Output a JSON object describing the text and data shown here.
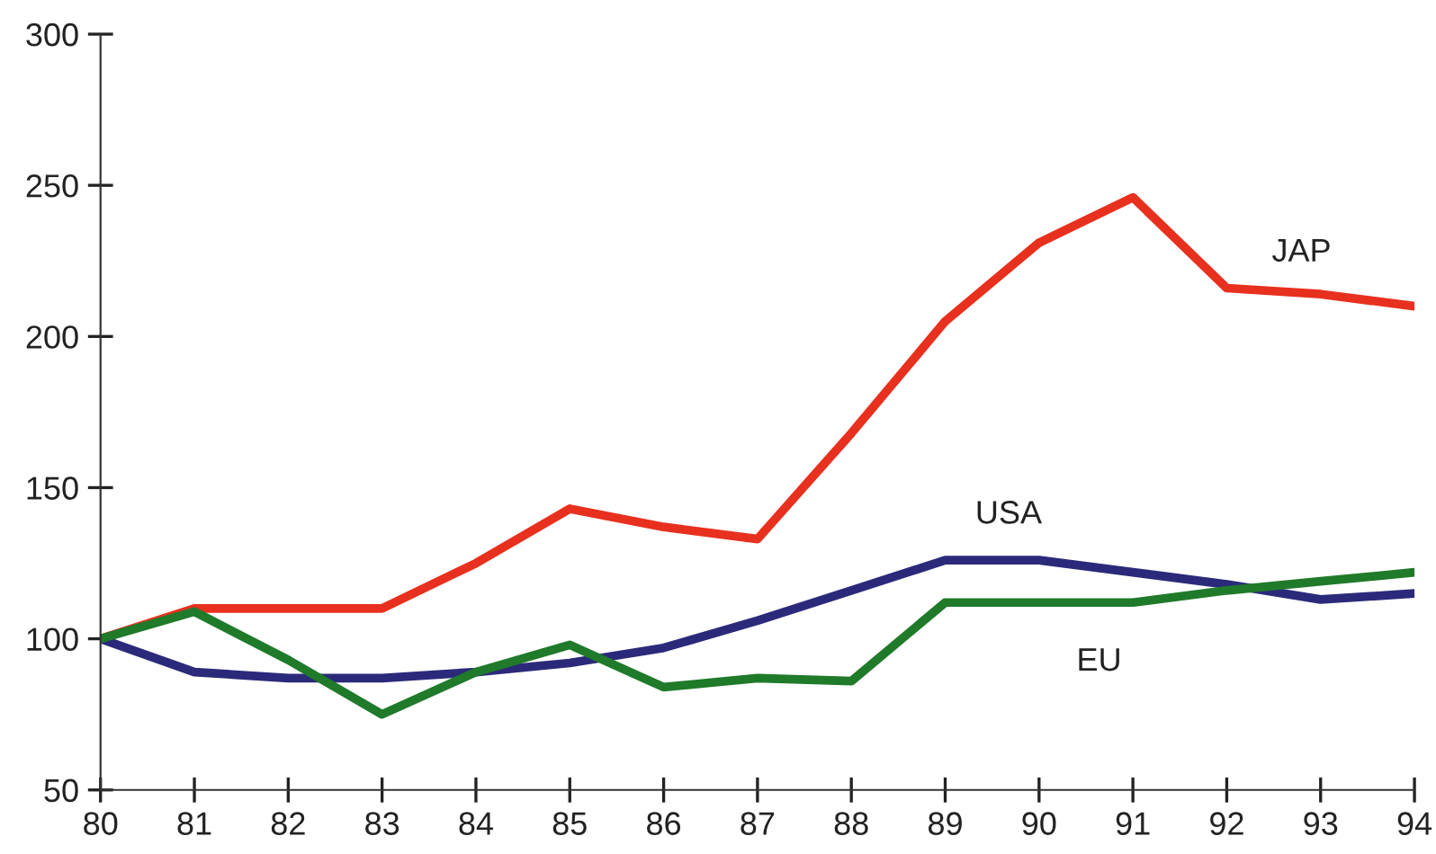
{
  "chart_data": {
    "type": "line",
    "x": [
      80,
      81,
      82,
      83,
      84,
      85,
      86,
      87,
      88,
      89,
      90,
      91,
      92,
      93,
      94
    ],
    "series": [
      {
        "name": "JAP",
        "color": "#e8301e",
        "values": [
          100,
          110,
          110,
          110,
          125,
          143,
          137,
          133,
          168,
          205,
          231,
          246,
          216,
          214,
          210
        ]
      },
      {
        "name": "USA",
        "color": "#2b2a7a",
        "values": [
          100,
          89,
          87,
          87,
          89,
          92,
          97,
          106,
          116,
          126,
          126,
          122,
          118,
          113,
          115
        ]
      },
      {
        "name": "EU",
        "color": "#1f7a2a",
        "values": [
          100,
          109,
          93,
          75,
          89,
          98,
          84,
          87,
          86,
          112,
          112,
          112,
          116,
          119,
          122
        ]
      }
    ],
    "xlim": [
      80,
      94
    ],
    "xticks": [
      80,
      81,
      82,
      83,
      84,
      85,
      86,
      87,
      88,
      89,
      90,
      91,
      92,
      93,
      94
    ],
    "ylim": [
      50,
      300
    ],
    "yticks": [
      50,
      100,
      150,
      200,
      250,
      300
    ],
    "grid": false,
    "legend": false,
    "marker": "none",
    "line_style": "solid"
  }
}
